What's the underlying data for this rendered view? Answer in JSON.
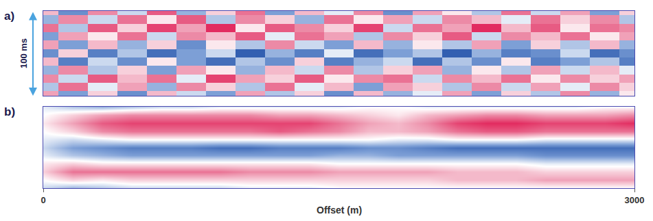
{
  "chart_data": [
    {
      "type": "heatmap",
      "title": "a)",
      "ylabel": "100 ms",
      "x": [
        0,
        150,
        300,
        450,
        600,
        750,
        900,
        1050,
        1200,
        1350,
        1500,
        1650,
        1800,
        1950,
        2100,
        2250,
        2400,
        2550,
        2700,
        2850,
        3000
      ],
      "y": [
        0,
        10,
        20,
        30,
        40,
        50,
        60,
        70,
        80,
        90,
        100
      ],
      "z": [
        [
          0.3,
          -0.6,
          0.5,
          -0.2,
          0.7,
          -0.4,
          0.2,
          0.6,
          -0.5,
          0.3,
          -0.1,
          0.5,
          -0.6,
          0.4,
          0.1,
          -0.3,
          0.6,
          -0.2,
          0.4,
          -0.5,
          0.2
        ],
        [
          -0.4,
          0.5,
          -0.2,
          0.6,
          0.1,
          0.7,
          -0.3,
          0.5,
          0.2,
          -0.4,
          0.6,
          0.1,
          0.4,
          -0.2,
          0.5,
          0.3,
          -0.1,
          0.6,
          0.2,
          0.5,
          -0.3
        ],
        [
          0.6,
          -0.3,
          0.7,
          0.2,
          0.8,
          0.4,
          0.9,
          0.1,
          0.7,
          0.5,
          0.2,
          0.8,
          -0.2,
          0.6,
          0.4,
          0.9,
          0.3,
          0.7,
          0.1,
          0.6,
          0.5
        ],
        [
          -0.5,
          0.4,
          0.1,
          0.6,
          -0.2,
          0.5,
          0.3,
          0.7,
          -0.1,
          0.6,
          0.4,
          -0.3,
          0.5,
          0.2,
          0.7,
          -0.2,
          0.5,
          0.3,
          0.6,
          0.1,
          0.4
        ],
        [
          0.4,
          -0.5,
          0.3,
          -0.4,
          0.2,
          -0.6,
          0.1,
          -0.3,
          0.5,
          -0.2,
          -0.5,
          0.3,
          -0.4,
          0.1,
          -0.3,
          0.4,
          -0.5,
          0.2,
          -0.3,
          0.3,
          -0.4
        ],
        [
          -0.6,
          0.2,
          -0.7,
          -0.3,
          -0.8,
          -0.5,
          -0.2,
          -0.9,
          -0.4,
          -0.7,
          -0.1,
          -0.8,
          -0.5,
          -0.3,
          -0.9,
          -0.4,
          -0.7,
          -0.6,
          -0.2,
          -0.8,
          -0.6
        ],
        [
          0.3,
          -0.7,
          -0.2,
          -0.6,
          0.1,
          -0.5,
          -0.8,
          -0.3,
          -0.6,
          0.2,
          -0.7,
          -0.4,
          -0.2,
          -0.8,
          -0.3,
          -0.6,
          0.1,
          -0.7,
          -0.5,
          -0.3,
          -0.7
        ],
        [
          -0.4,
          0.5,
          -0.3,
          0.2,
          -0.5,
          0.4,
          0.1,
          -0.4,
          0.3,
          -0.2,
          0.5,
          -0.3,
          0.2,
          0.4,
          -0.4,
          0.1,
          -0.3,
          0.4,
          -0.2,
          0.3,
          -0.1
        ],
        [
          0.5,
          -0.2,
          0.7,
          0.3,
          0.6,
          -0.1,
          0.8,
          0.4,
          0.2,
          0.7,
          0.1,
          0.5,
          0.6,
          -0.2,
          0.5,
          0.3,
          0.6,
          0.1,
          0.5,
          0.2,
          0.4
        ],
        [
          -0.3,
          0.6,
          -0.1,
          0.4,
          -0.4,
          0.5,
          0.2,
          -0.3,
          0.6,
          -0.1,
          0.3,
          -0.5,
          0.4,
          0.2,
          -0.3,
          0.5,
          -0.2,
          0.4,
          -0.1,
          0.5,
          0.2
        ],
        [
          0.4,
          -0.5,
          0.2,
          -0.6,
          0.3,
          -0.2,
          -0.5,
          0.4,
          -0.3,
          0.2,
          -0.6,
          0.3,
          -0.4,
          -0.1,
          0.4,
          -0.5,
          0.2,
          -0.3,
          0.5,
          -0.4,
          0.1
        ]
      ],
      "zlim": [
        -1,
        1
      ],
      "xlim": [
        0,
        3000
      ],
      "ylim": [
        0,
        100
      ],
      "tick_labels": false
    },
    {
      "type": "heatmap",
      "title": "b)",
      "xlabel": "Offset (m)",
      "x": [
        0,
        150,
        300,
        450,
        600,
        750,
        900,
        1050,
        1200,
        1350,
        1500,
        1650,
        1800,
        1950,
        2100,
        2250,
        2400,
        2550,
        2700,
        2850,
        3000
      ],
      "y": [
        0,
        10,
        20,
        30,
        40,
        50,
        60,
        70,
        80,
        90,
        100
      ],
      "z": [
        [
          -0.1,
          -0.3,
          -0.4,
          -0.3,
          -0.2,
          -0.2,
          -0.1,
          -0.1,
          -0.1,
          -0.1,
          -0.1,
          0,
          0,
          -0.1,
          -0.1,
          -0.1,
          -0.1,
          -0.1,
          -0.1,
          0,
          0
        ],
        [
          0,
          0.2,
          0.4,
          0.5,
          0.5,
          0.5,
          0.5,
          0.5,
          0.4,
          0.4,
          0.3,
          0.2,
          0.1,
          0.3,
          0.4,
          0.5,
          0.5,
          0.4,
          0.4,
          0.4,
          0.5
        ],
        [
          0.1,
          0.4,
          0.7,
          0.8,
          0.8,
          0.8,
          0.8,
          0.8,
          0.8,
          0.8,
          0.6,
          0.4,
          0.3,
          0.5,
          0.8,
          0.9,
          0.9,
          0.8,
          0.8,
          0.8,
          0.9
        ],
        [
          0,
          0.2,
          0.5,
          0.6,
          0.6,
          0.6,
          0.6,
          0.6,
          0.7,
          0.6,
          0.5,
          0.3,
          0.3,
          0.4,
          0.6,
          0.7,
          0.7,
          0.6,
          0.6,
          0.6,
          0.6
        ],
        [
          -0.1,
          -0.2,
          -0.1,
          0,
          0,
          0,
          0,
          0,
          0,
          0,
          0,
          0,
          -0.1,
          -0.1,
          0,
          0,
          0,
          -0.1,
          -0.1,
          -0.1,
          -0.1
        ],
        [
          -0.2,
          -0.5,
          -0.6,
          -0.7,
          -0.7,
          -0.7,
          -0.8,
          -0.8,
          -0.7,
          -0.7,
          -0.7,
          -0.6,
          -0.6,
          -0.7,
          -0.8,
          -0.8,
          -0.8,
          -0.8,
          -0.8,
          -0.8,
          -0.8
        ],
        [
          -0.1,
          -0.3,
          -0.4,
          -0.5,
          -0.5,
          -0.5,
          -0.5,
          -0.5,
          -0.5,
          -0.5,
          -0.4,
          -0.4,
          -0.5,
          -0.5,
          -0.5,
          -0.5,
          -0.5,
          -0.6,
          -0.6,
          -0.6,
          -0.6
        ],
        [
          0.1,
          0.2,
          0.1,
          0.1,
          0.1,
          0.1,
          0.1,
          0.1,
          0.1,
          0.1,
          0,
          0,
          0,
          0,
          0,
          0,
          0,
          -0.1,
          -0.1,
          -0.1,
          -0.1
        ],
        [
          0.2,
          0.6,
          0.6,
          0.6,
          0.6,
          0.6,
          0.6,
          0.5,
          0.5,
          0.5,
          0.4,
          0.4,
          0.4,
          0.4,
          0.3,
          0.3,
          0.3,
          0.2,
          0.2,
          0.2,
          0.2
        ],
        [
          0,
          0.2,
          0.1,
          0.2,
          0.2,
          0.2,
          0.2,
          0.2,
          0.2,
          0.2,
          0.2,
          0.2,
          0.2,
          0.2,
          0.3,
          0.3,
          0.3,
          0.4,
          0.4,
          0.4,
          0.4
        ],
        [
          -0.2,
          -0.4,
          -0.3,
          -0.2,
          -0.2,
          -0.2,
          -0.2,
          -0.1,
          -0.1,
          -0.1,
          0,
          0,
          0,
          0,
          0,
          0,
          0,
          0,
          0,
          0,
          0
        ]
      ],
      "zlim": [
        -1,
        1
      ],
      "xlim": [
        0,
        3000
      ],
      "ylim": [
        0,
        100
      ],
      "xticks": [
        0,
        3000
      ],
      "tick_labels": "x"
    }
  ]
}
